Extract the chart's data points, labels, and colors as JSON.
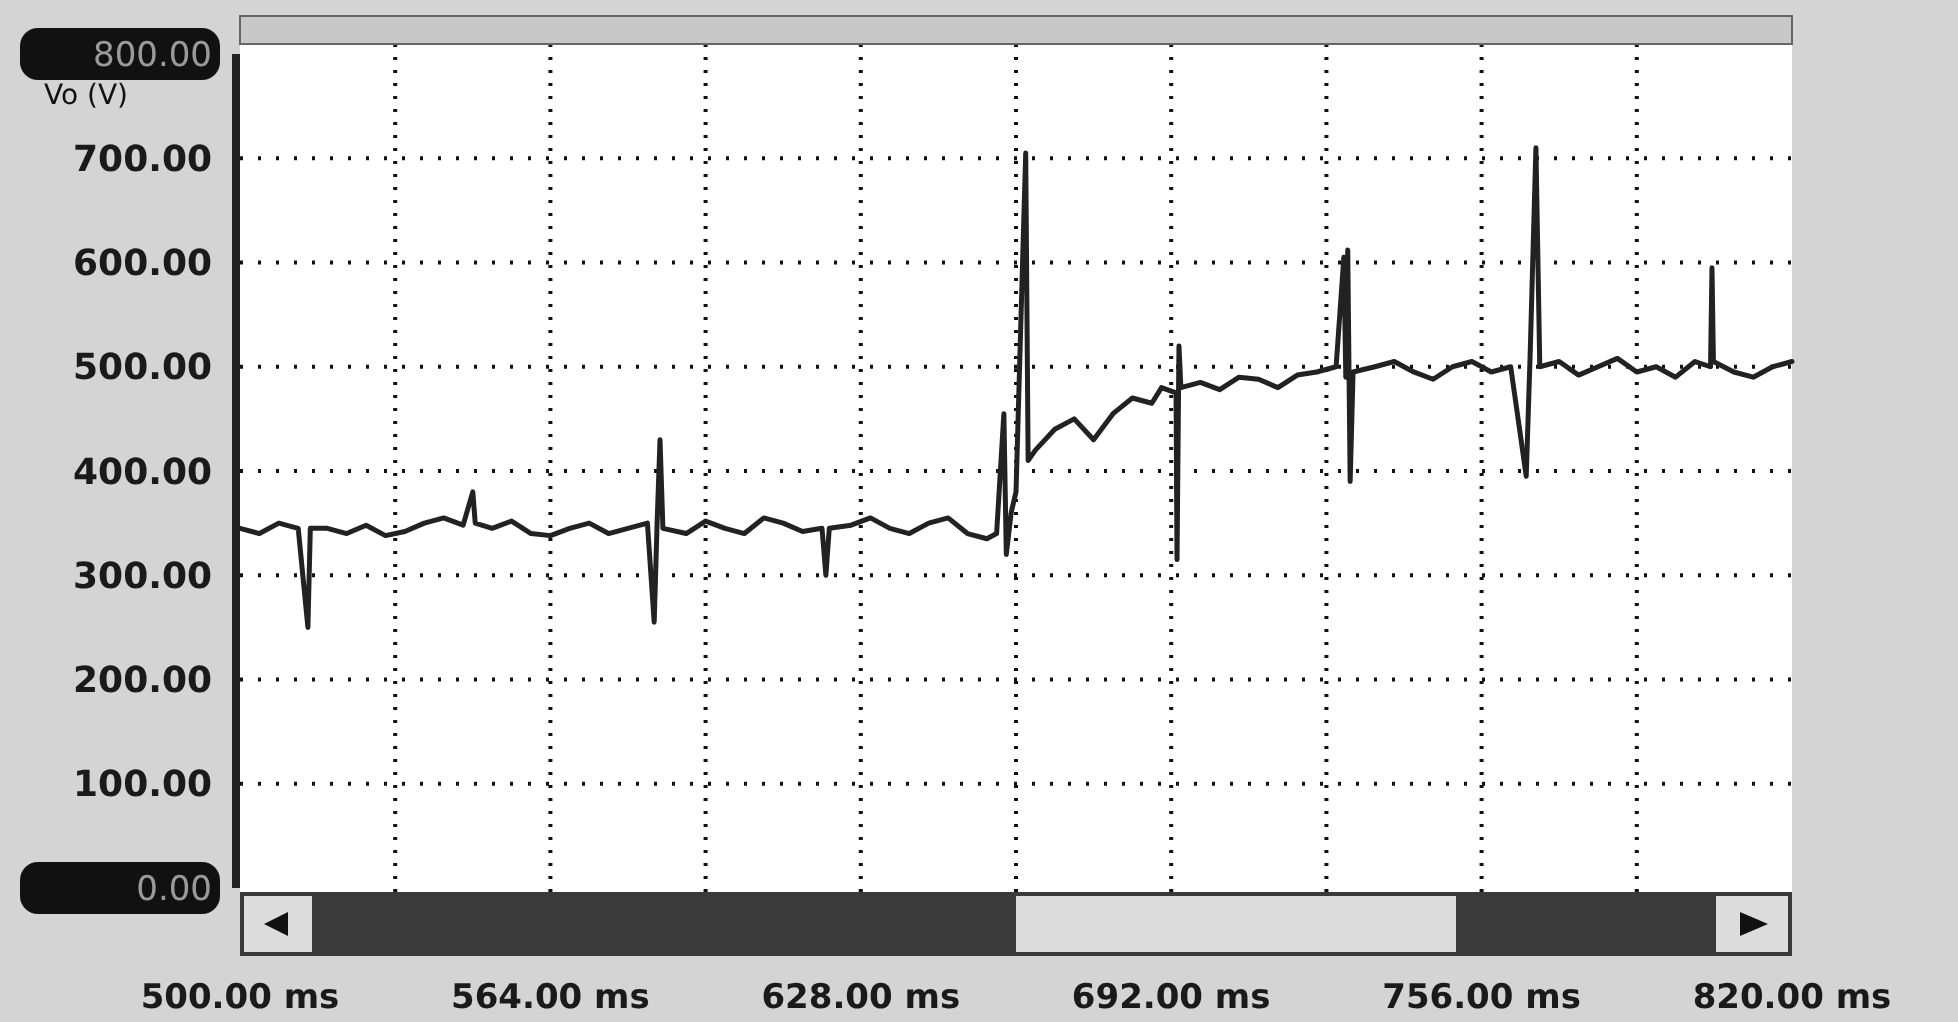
{
  "chart_data": {
    "type": "line",
    "ylabel": "Vo (V)",
    "xlim": [
      500,
      820
    ],
    "xticks": [
      {
        "value": 500,
        "label": "500.00 ms"
      },
      {
        "value": 532,
        "label": null
      },
      {
        "value": 564,
        "label": "564.00 ms"
      },
      {
        "value": 596,
        "label": null
      },
      {
        "value": 628,
        "label": "628.00 ms"
      },
      {
        "value": 660,
        "label": null
      },
      {
        "value": 692,
        "label": "692.00 ms"
      },
      {
        "value": 724,
        "label": null
      },
      {
        "value": 756,
        "label": "756.00 ms"
      },
      {
        "value": 788,
        "label": null
      },
      {
        "value": 820,
        "label": "820.00 ms"
      }
    ],
    "ylim": [
      0,
      800
    ],
    "yticks": [
      {
        "value": 0,
        "label": "0.00"
      },
      {
        "value": 100,
        "label": "100.00"
      },
      {
        "value": 200,
        "label": "200.00"
      },
      {
        "value": 300,
        "label": "300.00"
      },
      {
        "value": 400,
        "label": "400.00"
      },
      {
        "value": 500,
        "label": "500.00"
      },
      {
        "value": 600,
        "label": "600.00"
      },
      {
        "value": 700,
        "label": "700.00"
      },
      {
        "value": 800,
        "label": "800.00"
      }
    ],
    "grid": true,
    "line_style": "solid",
    "marker": "none",
    "series": [
      {
        "color": "#222222",
        "x": [
          500,
          504,
          508,
          512,
          514,
          514.5,
          518,
          522,
          526,
          530,
          534,
          538,
          542,
          546,
          548,
          548.5,
          552,
          556,
          560,
          564,
          568,
          572,
          576,
          580,
          584,
          585.4,
          586,
          586.6,
          587.2,
          592,
          596,
          600,
          604,
          608,
          612,
          616,
          620,
          620.8,
          621.5,
          626,
          630,
          634,
          638,
          642,
          646,
          650,
          654,
          656,
          657.5,
          658,
          659,
          660,
          662,
          662.5,
          664,
          668,
          672,
          676,
          680,
          684,
          688,
          690,
          693,
          693.2,
          693.6,
          694,
          698,
          702,
          706,
          710,
          714,
          718,
          722,
          726,
          727.6,
          728,
          728.4,
          728.9,
          729.5,
          734,
          738,
          742,
          746,
          750,
          754,
          758,
          762,
          765.2,
          766,
          767.2,
          768,
          772,
          776,
          780,
          784,
          788,
          792,
          796,
          800,
          803.2,
          803.5,
          803.8,
          808,
          812,
          816,
          820
        ],
        "values": [
          345,
          340,
          350,
          345,
          250,
          345,
          345,
          340,
          348,
          338,
          342,
          350,
          355,
          348,
          380,
          350,
          345,
          352,
          340,
          338,
          345,
          350,
          340,
          345,
          350,
          255,
          350,
          430,
          345,
          340,
          352,
          345,
          340,
          355,
          350,
          342,
          345,
          300,
          345,
          348,
          355,
          345,
          340,
          350,
          355,
          340,
          335,
          340,
          455,
          320,
          360,
          380,
          705,
          410,
          420,
          440,
          450,
          430,
          455,
          470,
          465,
          480,
          475,
          315,
          520,
          480,
          485,
          478,
          490,
          488,
          480,
          492,
          495,
          500,
          605,
          490,
          612,
          390,
          495,
          500,
          505,
          495,
          488,
          500,
          505,
          495,
          500,
          395,
          510,
          710,
          500,
          505,
          492,
          500,
          508,
          495,
          500,
          490,
          505,
          500,
          595,
          505,
          495,
          490,
          500,
          505
        ]
      }
    ]
  }
}
